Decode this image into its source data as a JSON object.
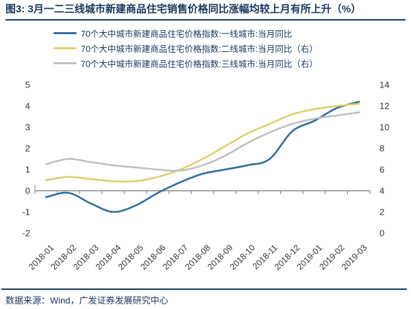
{
  "title": "图3: 3月一二三线城市新建商品住宅销售价格同比涨幅均较上月有所上升（%）",
  "footer": {
    "source": "数据来源：Wind，广发证券发展研究中心"
  },
  "colors": {
    "tier1_line": "#2c6d9c",
    "tier2_line": "#ddd06e",
    "tier3_line": "#bfbfbf",
    "axis_line": "#8c8c8c",
    "tick_label": "#333333",
    "title_navy": "#17365d"
  },
  "legend": [
    {
      "label": "70个大中城市新建商品住宅价格指数:一线城市:当月同比",
      "color": "#2c6d9c"
    },
    {
      "label": "70个大中城市新建商品住宅价格指数:二线城市:当月同比（右）",
      "color": "#ddd06e"
    },
    {
      "label": "70个大中城市新建商品住宅价格指数:三线城市:当月同比（右）",
      "color": "#bfbfbf"
    }
  ],
  "chart_data": {
    "type": "line",
    "x": [
      "2018-01",
      "2018-02",
      "2018-03",
      "2018-04",
      "2018-05",
      "2018-06",
      "2018-07",
      "2018-08",
      "2018-09",
      "2018-10",
      "2018-11",
      "2018-12",
      "2019-01",
      "2019-02",
      "2019-03"
    ],
    "series": [
      {
        "name": "70个大中城市新建商品住宅价格指数:一线城市:当月同比",
        "axis": "left",
        "color": "#2c6d9c",
        "values": [
          -0.3,
          -0.1,
          -0.6,
          -1.0,
          -0.7,
          -0.1,
          0.4,
          0.8,
          1.0,
          1.2,
          1.5,
          2.8,
          3.3,
          3.9,
          4.2
        ]
      },
      {
        "name": "70个大中城市新建商品住宅价格指数:二线城市:当月同比（右）",
        "axis": "right",
        "color": "#ddd06e",
        "values": [
          5.0,
          5.3,
          5.1,
          4.9,
          4.9,
          5.3,
          6.0,
          7.0,
          8.2,
          9.4,
          10.3,
          11.2,
          11.7,
          12.0,
          12.2
        ]
      },
      {
        "name": "70个大中城市新建商品住宅价格指数:三线城市:当月同比（右）",
        "axis": "right",
        "color": "#bfbfbf",
        "values": [
          6.5,
          7.0,
          6.7,
          6.4,
          6.2,
          6.0,
          5.9,
          6.4,
          7.3,
          8.5,
          9.5,
          10.3,
          10.8,
          11.1,
          11.4
        ]
      }
    ],
    "left_axis": {
      "min": -2,
      "max": 5,
      "ticks": [
        5,
        4,
        3,
        2,
        1,
        0,
        -1,
        -2
      ]
    },
    "right_axis": {
      "min": 0,
      "max": 14,
      "ticks": [
        14,
        12,
        10,
        8,
        6,
        4,
        2,
        0
      ]
    },
    "grid": false,
    "legend_position": "top-left",
    "x_labels_rotation_deg": -45
  }
}
